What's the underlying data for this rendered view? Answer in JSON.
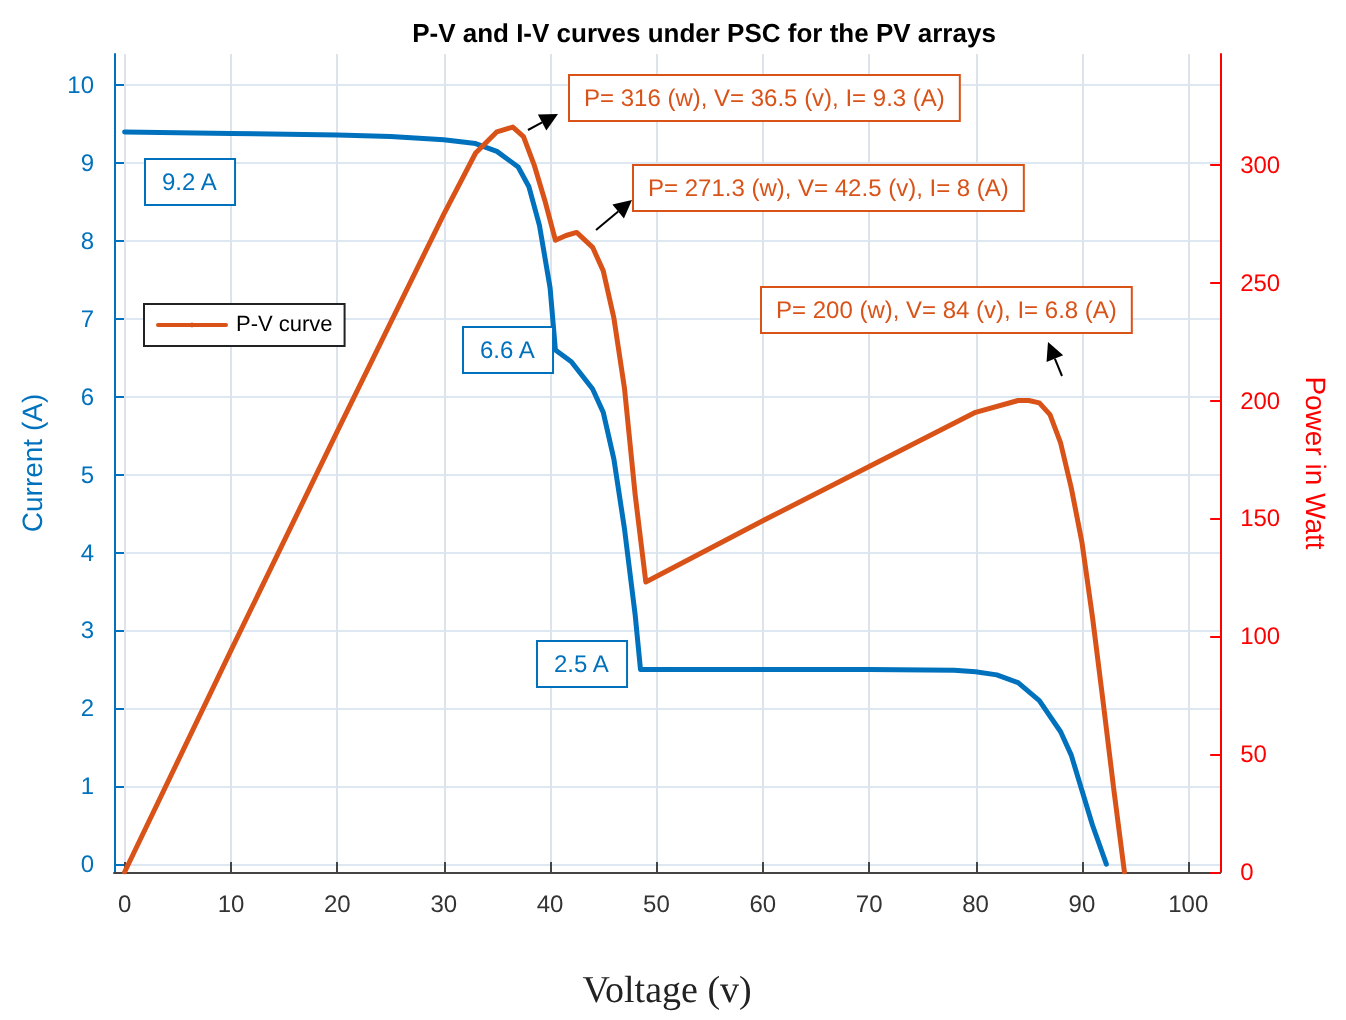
{
  "chart_data": {
    "type": "line",
    "title": "P-V and I-V curves under PSC for the PV arrays",
    "xlabel": "Voltage (v)",
    "ylabel": "Current (A)",
    "y2label": "Power in Watt",
    "series": [
      {
        "color": "#0072bd",
        "x": [
          0,
          10,
          20,
          25,
          30,
          33,
          35,
          37,
          38,
          39,
          40,
          40.5,
          42,
          44,
          45,
          46,
          47,
          48,
          48.5,
          50,
          60,
          70,
          78,
          80,
          82,
          84,
          86,
          88,
          89,
          90,
          91,
          92.3
        ],
        "values": [
          9.4,
          9.38,
          9.36,
          9.34,
          9.3,
          9.25,
          9.15,
          8.95,
          8.7,
          8.2,
          7.4,
          6.6,
          6.45,
          6.1,
          5.8,
          5.2,
          4.3,
          3.2,
          2.5,
          2.5,
          2.5,
          2.5,
          2.49,
          2.47,
          2.43,
          2.33,
          2.1,
          1.7,
          1.4,
          0.95,
          0.5,
          0
        ]
      },
      {
        "name": "P-V curve",
        "color": "#d95319",
        "axis": "y2",
        "x": [
          0,
          10,
          20,
          30,
          33,
          35,
          36.5,
          37.5,
          38.5,
          39.5,
          40.5,
          41.5,
          42.5,
          44,
          45,
          46,
          47,
          48,
          49,
          60,
          70,
          80,
          84,
          85,
          86,
          87,
          88,
          89,
          90,
          91,
          92,
          93,
          94
        ],
        "values": [
          0,
          94,
          187,
          279,
          305,
          314,
          316,
          312,
          300,
          285,
          268,
          270,
          271.3,
          265,
          255,
          235,
          205,
          160,
          123,
          149,
          172,
          195,
          200,
          200,
          199,
          194,
          182,
          163,
          140,
          108,
          72,
          35,
          0
        ]
      }
    ],
    "annotations": [
      "9.2 A",
      "6.6 A",
      "2.5 A",
      "P= 316 (w), V= 36.5 (v), I= 9.3 (A)",
      "P= 271.3 (w), V= 42.5 (v), I= 8 (A)",
      "P= 200 (w), V= 84 (v), I= 6.8 (A)"
    ],
    "xlim": [
      -1,
      103
    ],
    "xticks": [
      0,
      10,
      20,
      30,
      40,
      50,
      60,
      70,
      80,
      90,
      100
    ],
    "ylim": [
      -0.1,
      10.4
    ],
    "yticks": [
      0,
      1,
      2,
      3,
      4,
      5,
      6,
      7,
      8,
      9,
      10
    ],
    "y2lim": [
      0,
      347
    ],
    "y2ticks": [
      0,
      50,
      100,
      150,
      200,
      250,
      300
    ],
    "grid": true,
    "legend": "top left",
    "marker": "none",
    "line_style": "solid"
  }
}
